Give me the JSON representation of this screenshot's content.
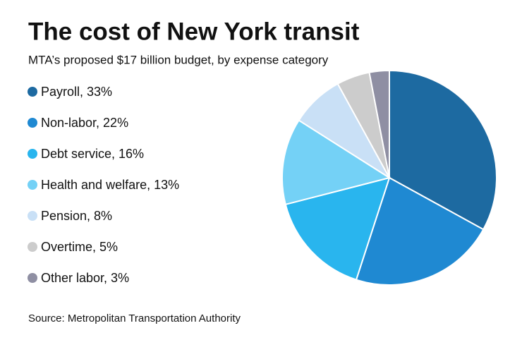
{
  "chart_data": {
    "type": "pie",
    "title": "The cost of New York transit",
    "subtitle": "MTA’s proposed $17 billion budget, by expense category",
    "source": "Source: Metropolitan Transportation Authority",
    "categories": [
      "Payroll, 33%",
      "Non-labor, 22%",
      "Debt service, 16%",
      "Health and welfare, 13%",
      "Pension, 8%",
      "Overtime, 5%",
      "Other labor, 3%"
    ],
    "values": [
      33,
      22,
      16,
      13,
      8,
      5,
      3
    ],
    "colors": [
      "#1d6aa1",
      "#1f89d2",
      "#29b5ee",
      "#74d1f6",
      "#c9e0f6",
      "#cccccc",
      "#8f8fa3"
    ],
    "legend": "left"
  }
}
